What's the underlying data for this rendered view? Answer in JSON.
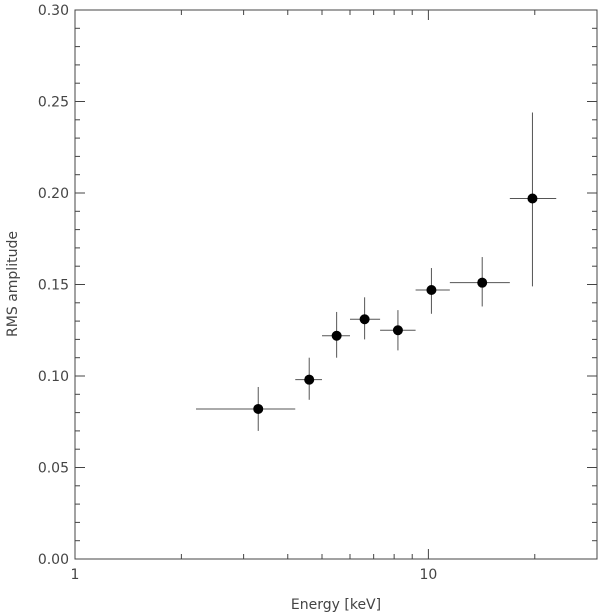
{
  "chart_data": {
    "type": "scatter",
    "xlabel": "Energy [keV]",
    "ylabel": "RMS amplitude",
    "xscale": "log",
    "xlim": [
      1,
      30
    ],
    "ylim": [
      0,
      0.3
    ],
    "grid": false,
    "legend": "none",
    "xticks_major": [
      {
        "value": 1,
        "label": "1"
      },
      {
        "value": 10,
        "label": "10"
      }
    ],
    "xticks_minor": [
      2,
      3,
      4,
      5,
      6,
      7,
      8,
      9,
      20,
      30
    ],
    "yticks": [
      {
        "value": 0.0,
        "label": "0.00"
      },
      {
        "value": 0.05,
        "label": "0.05"
      },
      {
        "value": 0.1,
        "label": "0.10"
      },
      {
        "value": 0.15,
        "label": "0.15"
      },
      {
        "value": 0.2,
        "label": "0.20"
      },
      {
        "value": 0.25,
        "label": "0.25"
      },
      {
        "value": 0.3,
        "label": "0.30"
      }
    ],
    "points": [
      {
        "x": 3.3,
        "xlo": 2.2,
        "xhi": 4.2,
        "y": 0.082,
        "ylo": 0.07,
        "yhi": 0.094
      },
      {
        "x": 4.6,
        "xlo": 4.2,
        "xhi": 5.0,
        "y": 0.098,
        "ylo": 0.087,
        "yhi": 0.11
      },
      {
        "x": 5.5,
        "xlo": 5.0,
        "xhi": 6.0,
        "y": 0.122,
        "ylo": 0.11,
        "yhi": 0.135
      },
      {
        "x": 6.6,
        "xlo": 6.0,
        "xhi": 7.3,
        "y": 0.131,
        "ylo": 0.12,
        "yhi": 0.143
      },
      {
        "x": 8.2,
        "xlo": 7.3,
        "xhi": 9.2,
        "y": 0.125,
        "ylo": 0.114,
        "yhi": 0.136
      },
      {
        "x": 10.2,
        "xlo": 9.2,
        "xhi": 11.5,
        "y": 0.147,
        "ylo": 0.134,
        "yhi": 0.159
      },
      {
        "x": 14.2,
        "xlo": 11.5,
        "xhi": 17.0,
        "y": 0.151,
        "ylo": 0.138,
        "yhi": 0.165
      },
      {
        "x": 19.7,
        "xlo": 17.0,
        "xhi": 23.0,
        "y": 0.197,
        "ylo": 0.149,
        "yhi": 0.244
      }
    ],
    "colors": {
      "marker": "#000000",
      "errorbar": "#555555",
      "axis": "#444444"
    }
  }
}
